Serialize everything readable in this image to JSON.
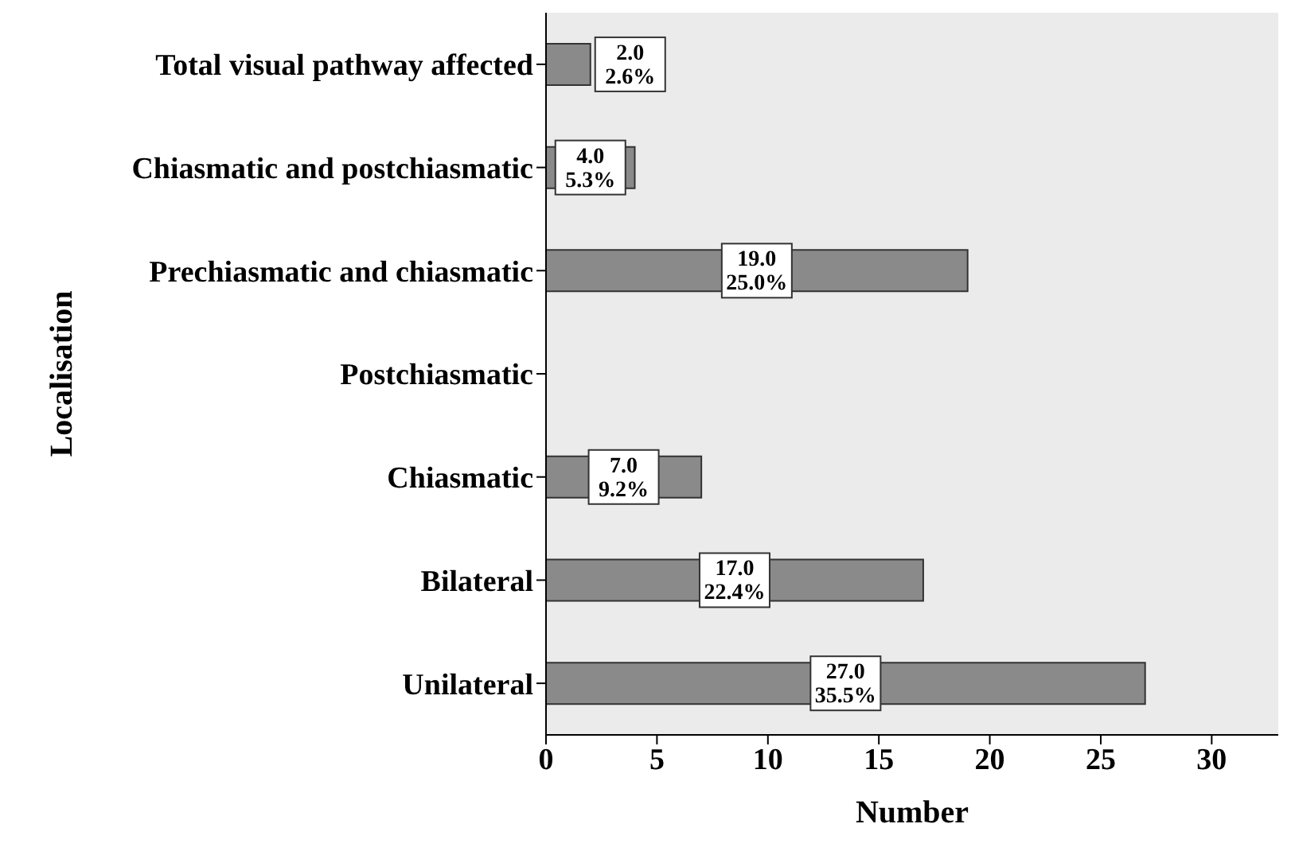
{
  "chart_data": {
    "type": "bar",
    "orientation": "horizontal",
    "xlabel": "Number",
    "ylabel": "Localisation",
    "categories": [
      "Total visual pathway affected",
      "Chiasmatic and postchiasmatic",
      "Prechiasmatic and chiasmatic",
      "Postchiasmatic",
      "Chiasmatic",
      "Bilateral",
      "Unilateral"
    ],
    "values": [
      2,
      4,
      19,
      0,
      7,
      17,
      27
    ],
    "value_labels": [
      "2.0\n2.6%",
      "4.0\n5.3%",
      "19.0\n25.0%",
      null,
      "7.0\n9.2%",
      "17.0\n22.4%",
      "27.0\n35.5%"
    ],
    "color": "#8a8a8a",
    "xlim": [
      0,
      33
    ],
    "xticks": [
      0,
      5,
      10,
      15,
      20,
      25,
      30
    ],
    "grid": false,
    "legend": false
  }
}
